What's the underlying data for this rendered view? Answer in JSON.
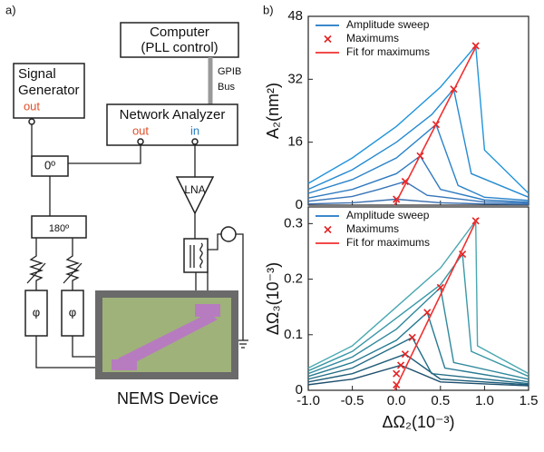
{
  "panel_a": {
    "label": "a)",
    "computer": {
      "line1": "Computer",
      "line2": "(PLL control)"
    },
    "bus": {
      "line1": "GPIB",
      "line2": "Bus"
    },
    "signal_generator": {
      "line1": "Signal",
      "line2": "Generator",
      "port": "out"
    },
    "network_analyzer": {
      "title": "Network Analyzer",
      "out": "out",
      "in": "in"
    },
    "splitter_0": "0º",
    "splitter_180": "180º",
    "amplifier": "LNA",
    "phase_shifters": [
      "φ",
      "φ"
    ],
    "device": "NEMS Device"
  },
  "panel_b_label": "b)",
  "chart_data": [
    {
      "type": "line",
      "ylabel": "A₂(nm²)",
      "xlim": [
        -1,
        1.5
      ],
      "ylim": [
        0,
        48
      ],
      "xticks": [
        -1,
        -0.5,
        0,
        0.5,
        1,
        1.5
      ],
      "yticks": [
        0,
        16,
        32,
        48
      ],
      "legend": "upper left",
      "series": [
        {
          "name": "Amplitude sweep",
          "color": "#1f77c4",
          "curves": [
            {
              "color": "#3a6fb0",
              "x": [
                -1,
                -0.5,
                0,
                0.5,
                1,
                1.5
              ],
              "values": [
                0.3,
                0.6,
                1.5,
                0.6,
                0.3,
                0.2
              ]
            },
            {
              "color": "#3674b8",
              "x": [
                -1,
                -0.5,
                -0.2,
                0.1,
                0.35,
                1,
                1.5
              ],
              "values": [
                1,
                2.2,
                4,
                6,
                2.5,
                0.8,
                0.5
              ]
            },
            {
              "color": "#2f7ac0",
              "x": [
                -1,
                -0.5,
                0,
                0.27,
                0.5,
                1,
                1.5
              ],
              "values": [
                1.8,
                4,
                8,
                12.5,
                4,
                1.3,
                0.8
              ]
            },
            {
              "color": "#2a82c9",
              "x": [
                -1,
                -0.5,
                0,
                0.45,
                0.7,
                1,
                1.5
              ],
              "values": [
                3,
                6.5,
                12,
                20.5,
                5,
                2,
                1.2
              ]
            },
            {
              "color": "#258ad2",
              "x": [
                -1,
                -0.5,
                0,
                0.4,
                0.65,
                0.85,
                1.5
              ],
              "values": [
                4,
                9,
                16,
                23,
                29.5,
                8,
                2
              ]
            },
            {
              "color": "#2094dc",
              "x": [
                -1,
                -0.5,
                0,
                0.5,
                0.9,
                1,
                1.5
              ],
              "values": [
                5.5,
                12,
                20,
                30,
                40.5,
                14,
                3
              ]
            }
          ]
        },
        {
          "name": "Maximums",
          "color": "#e32222",
          "marker": "x",
          "x": [
            0,
            0.1,
            0.27,
            0.45,
            0.65,
            0.9
          ],
          "values": [
            1.5,
            6,
            12.5,
            20.5,
            29.5,
            40.5
          ]
        },
        {
          "name": "Fit for maximums",
          "color": "#f03030",
          "x": [
            -0.02,
            0.92
          ],
          "values": [
            0,
            41
          ]
        }
      ]
    },
    {
      "type": "line",
      "xlabel": "ΔΩ₂(10⁻³)",
      "ylabel": "ΔΩ₃(10⁻³)",
      "xlim": [
        -1,
        1.5
      ],
      "ylim": [
        0,
        0.33
      ],
      "xticks": [
        {
          "value": -1,
          "label": "-1.0"
        },
        -0.5,
        {
          "value": 0,
          "label": "0.0"
        },
        0.5,
        {
          "value": 1,
          "label": "1.0"
        },
        1.5
      ],
      "yticks": [
        0,
        0.1,
        0.2,
        0.3
      ],
      "legend": "upper left",
      "series": [
        {
          "name": "Amplitude sweep",
          "color": "#1f77c4",
          "curves": [
            {
              "color": "#1d4f6e",
              "x": [
                -1,
                -0.5,
                0.05,
                0.5,
                1.5
              ],
              "values": [
                0.01,
                0.02,
                0.045,
                0.015,
                0.008
              ]
            },
            {
              "color": "#1f5d7a",
              "x": [
                -1,
                -0.5,
                0.1,
                0.5,
                1.5
              ],
              "values": [
                0.015,
                0.03,
                0.065,
                0.02,
                0.01
              ]
            },
            {
              "color": "#226b86",
              "x": [
                -1,
                -0.5,
                0.18,
                0.4,
                1.5
              ],
              "values": [
                0.02,
                0.04,
                0.095,
                0.03,
                0.012
              ]
            },
            {
              "color": "#287a92",
              "x": [
                -1,
                -0.5,
                0,
                0.35,
                0.55,
                1.5
              ],
              "values": [
                0.025,
                0.05,
                0.09,
                0.14,
                0.04,
                0.015
              ]
            },
            {
              "color": "#2f899c",
              "x": [
                -1,
                -0.5,
                0,
                0.5,
                0.65,
                1.5
              ],
              "values": [
                0.03,
                0.06,
                0.11,
                0.185,
                0.05,
                0.02
              ]
            },
            {
              "color": "#3a98a6",
              "x": [
                -1,
                -0.5,
                0,
                0.5,
                0.75,
                0.85,
                1.5
              ],
              "values": [
                0.035,
                0.07,
                0.13,
                0.19,
                0.245,
                0.07,
                0.025
              ]
            },
            {
              "color": "#4aa8b0",
              "x": [
                -1,
                -0.5,
                0,
                0.5,
                0.9,
                0.92,
                1.5
              ],
              "values": [
                0.04,
                0.08,
                0.15,
                0.22,
                0.305,
                0.08,
                0.03
              ]
            }
          ]
        },
        {
          "name": "Maximums",
          "color": "#e32222",
          "marker": "x",
          "x": [
            0,
            0,
            0.05,
            0.1,
            0.18,
            0.35,
            0.5,
            0.75,
            0.9
          ],
          "values": [
            0.01,
            0.03,
            0.045,
            0.065,
            0.095,
            0.14,
            0.185,
            0.245,
            0.305
          ]
        },
        {
          "name": "Fit for maximums",
          "color": "#f03030",
          "x": [
            -0.02,
            0.92
          ],
          "values": [
            0,
            0.31
          ]
        }
      ]
    }
  ]
}
